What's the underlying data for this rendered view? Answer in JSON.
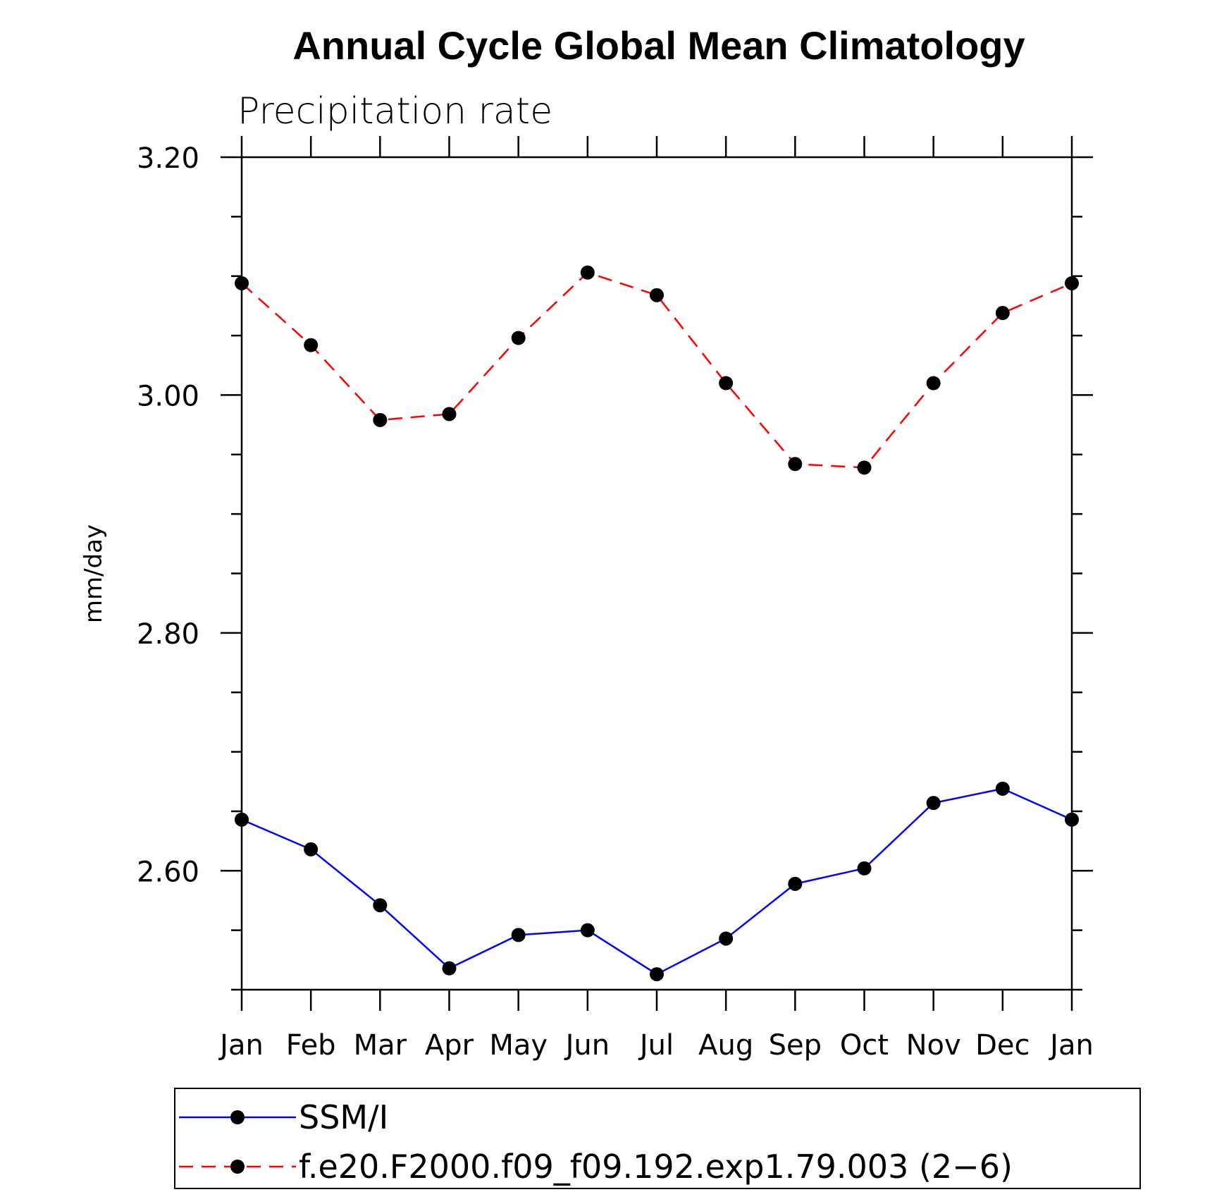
{
  "chart_data": {
    "type": "line",
    "title": "Annual Cycle Global Mean Climatology",
    "subtitle": "Precipitation rate",
    "xlabel": "",
    "ylabel": "mm/day",
    "categories": [
      "Jan",
      "Feb",
      "Mar",
      "Apr",
      "May",
      "Jun",
      "Jul",
      "Aug",
      "Sep",
      "Oct",
      "Nov",
      "Dec",
      "Jan"
    ],
    "ylim": [
      2.5,
      3.2
    ],
    "yticks_major": [
      2.6,
      2.8,
      3.0,
      3.2
    ],
    "ytick_labels": [
      "2.60",
      "2.80",
      "3.00",
      "3.20"
    ],
    "yminor_step": 0.05,
    "grid": false,
    "legend_position": "bottom",
    "series": [
      {
        "name": "SSM/I",
        "color": "#0000ff",
        "line_style": "solid",
        "marker": "filled-circle",
        "values": [
          2.643,
          2.618,
          2.571,
          2.518,
          2.546,
          2.55,
          2.513,
          2.543,
          2.589,
          2.602,
          2.657,
          2.669,
          2.643
        ]
      },
      {
        "name": "f.e20.F2000.f09_f09.192.exp1.79.003 (2−6)",
        "color": "#ff0000",
        "line_style": "dashed",
        "marker": "filled-circle",
        "values": [
          3.094,
          3.042,
          2.979,
          2.984,
          3.048,
          3.103,
          3.084,
          3.01,
          2.942,
          2.939,
          3.01,
          3.069,
          3.094
        ]
      }
    ]
  }
}
